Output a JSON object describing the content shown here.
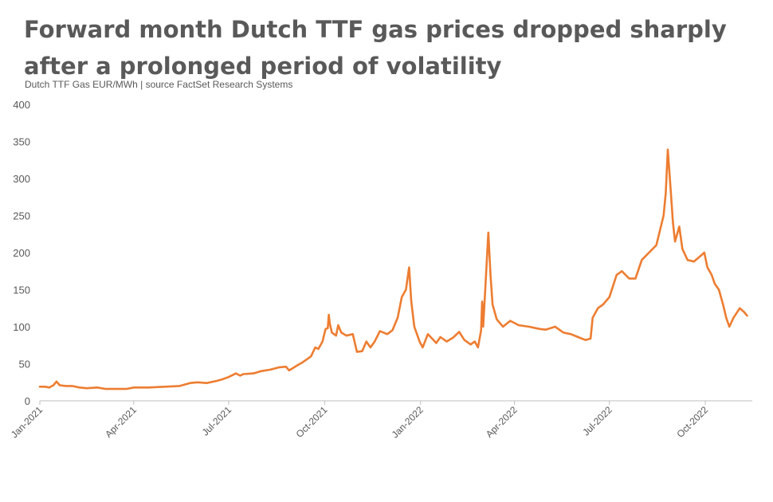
{
  "chart_data": {
    "type": "line",
    "title": "Forward month Dutch TTF gas prices dropped sharply after a prolonged period of volatility",
    "subtitle": "Dutch TTF Gas EUR/MWh  |  source FactSet Research Systems",
    "xlabel": "",
    "ylabel": "",
    "xlim": [
      "2021-01-01",
      "2022-11-15"
    ],
    "ylim": [
      0,
      400
    ],
    "y_ticks": [
      0,
      50,
      100,
      150,
      200,
      250,
      300,
      350,
      400
    ],
    "x_ticks": [
      {
        "date": "2021-01-01",
        "label": "Jan-2021"
      },
      {
        "date": "2021-04-01",
        "label": "Apr-2021"
      },
      {
        "date": "2021-07-01",
        "label": "Jul-2021"
      },
      {
        "date": "2021-10-01",
        "label": "Oct-2021"
      },
      {
        "date": "2022-01-01",
        "label": "Jan-2022"
      },
      {
        "date": "2022-04-01",
        "label": "Apr-2022"
      },
      {
        "date": "2022-07-01",
        "label": "Jul-2022"
      },
      {
        "date": "2022-10-01",
        "label": "Oct-2022"
      }
    ],
    "grid": false,
    "legend": "none",
    "colors": {
      "line": "#ED7D31",
      "axis": "#BFBFBF",
      "text": "#595959"
    },
    "series": [
      {
        "name": "",
        "points": [
          [
            "2021-01-01",
            19
          ],
          [
            "2021-01-06",
            19
          ],
          [
            "2021-01-10",
            18
          ],
          [
            "2021-01-14",
            21
          ],
          [
            "2021-01-17",
            26
          ],
          [
            "2021-01-20",
            21
          ],
          [
            "2021-01-26",
            20
          ],
          [
            "2021-02-01",
            20
          ],
          [
            "2021-02-08",
            18
          ],
          [
            "2021-02-15",
            17
          ],
          [
            "2021-02-25",
            18
          ],
          [
            "2021-03-05",
            16
          ],
          [
            "2021-03-15",
            16
          ],
          [
            "2021-03-25",
            16
          ],
          [
            "2021-04-01",
            18
          ],
          [
            "2021-04-15",
            18
          ],
          [
            "2021-05-01",
            19
          ],
          [
            "2021-05-15",
            20
          ],
          [
            "2021-05-25",
            24
          ],
          [
            "2021-06-01",
            25
          ],
          [
            "2021-06-10",
            24
          ],
          [
            "2021-06-20",
            27
          ],
          [
            "2021-06-25",
            29
          ],
          [
            "2021-07-01",
            32
          ],
          [
            "2021-07-08",
            37
          ],
          [
            "2021-07-12",
            34
          ],
          [
            "2021-07-15",
            36
          ],
          [
            "2021-07-25",
            37
          ],
          [
            "2021-08-01",
            40
          ],
          [
            "2021-08-10",
            42
          ],
          [
            "2021-08-18",
            45
          ],
          [
            "2021-08-25",
            46
          ],
          [
            "2021-08-28",
            41
          ],
          [
            "2021-09-05",
            48
          ],
          [
            "2021-09-10",
            52
          ],
          [
            "2021-09-18",
            60
          ],
          [
            "2021-09-22",
            72
          ],
          [
            "2021-09-25",
            70
          ],
          [
            "2021-09-29",
            80
          ],
          [
            "2021-10-02",
            97
          ],
          [
            "2021-10-04",
            98
          ],
          [
            "2021-10-05",
            116
          ],
          [
            "2021-10-06",
            104
          ],
          [
            "2021-10-08",
            92
          ],
          [
            "2021-10-12",
            88
          ],
          [
            "2021-10-14",
            102
          ],
          [
            "2021-10-17",
            92
          ],
          [
            "2021-10-22",
            88
          ],
          [
            "2021-10-28",
            90
          ],
          [
            "2021-11-01",
            66
          ],
          [
            "2021-11-06",
            67
          ],
          [
            "2021-11-10",
            80
          ],
          [
            "2021-11-14",
            72
          ],
          [
            "2021-11-18",
            80
          ],
          [
            "2021-11-23",
            94
          ],
          [
            "2021-11-30",
            90
          ],
          [
            "2021-12-05",
            95
          ],
          [
            "2021-12-10",
            112
          ],
          [
            "2021-12-14",
            140
          ],
          [
            "2021-12-18",
            150
          ],
          [
            "2021-12-21",
            180
          ],
          [
            "2021-12-23",
            135
          ],
          [
            "2021-12-26",
            100
          ],
          [
            "2021-12-31",
            80
          ],
          [
            "2022-01-03",
            72
          ],
          [
            "2022-01-08",
            90
          ],
          [
            "2022-01-12",
            84
          ],
          [
            "2022-01-16",
            78
          ],
          [
            "2022-01-20",
            86
          ],
          [
            "2022-01-26",
            80
          ],
          [
            "2022-02-01",
            85
          ],
          [
            "2022-02-07",
            93
          ],
          [
            "2022-02-12",
            82
          ],
          [
            "2022-02-18",
            76
          ],
          [
            "2022-02-22",
            80
          ],
          [
            "2022-02-25",
            72
          ],
          [
            "2022-02-28",
            95
          ],
          [
            "2022-03-01",
            134
          ],
          [
            "2022-03-02",
            100
          ],
          [
            "2022-03-04",
            150
          ],
          [
            "2022-03-07",
            227
          ],
          [
            "2022-03-09",
            170
          ],
          [
            "2022-03-11",
            130
          ],
          [
            "2022-03-15",
            110
          ],
          [
            "2022-03-21",
            100
          ],
          [
            "2022-03-28",
            108
          ],
          [
            "2022-04-05",
            102
          ],
          [
            "2022-04-15",
            100
          ],
          [
            "2022-04-25",
            97
          ],
          [
            "2022-05-01",
            96
          ],
          [
            "2022-05-10",
            100
          ],
          [
            "2022-05-18",
            92
          ],
          [
            "2022-05-25",
            90
          ],
          [
            "2022-06-01",
            86
          ],
          [
            "2022-06-08",
            82
          ],
          [
            "2022-06-13",
            84
          ],
          [
            "2022-06-15",
            112
          ],
          [
            "2022-06-20",
            125
          ],
          [
            "2022-06-25",
            130
          ],
          [
            "2022-07-01",
            140
          ],
          [
            "2022-07-08",
            170
          ],
          [
            "2022-07-13",
            175
          ],
          [
            "2022-07-20",
            165
          ],
          [
            "2022-07-26",
            165
          ],
          [
            "2022-08-01",
            190
          ],
          [
            "2022-08-08",
            200
          ],
          [
            "2022-08-15",
            210
          ],
          [
            "2022-08-22",
            250
          ],
          [
            "2022-08-24",
            280
          ],
          [
            "2022-08-26",
            339
          ],
          [
            "2022-08-29",
            280
          ],
          [
            "2022-08-31",
            240
          ],
          [
            "2022-09-02",
            215
          ],
          [
            "2022-09-06",
            235
          ],
          [
            "2022-09-09",
            205
          ],
          [
            "2022-09-14",
            190
          ],
          [
            "2022-09-20",
            188
          ],
          [
            "2022-09-26",
            195
          ],
          [
            "2022-09-30",
            200
          ],
          [
            "2022-10-03",
            180
          ],
          [
            "2022-10-07",
            170
          ],
          [
            "2022-10-10",
            158
          ],
          [
            "2022-10-14",
            150
          ],
          [
            "2022-10-18",
            130
          ],
          [
            "2022-10-21",
            112
          ],
          [
            "2022-10-24",
            100
          ],
          [
            "2022-10-28",
            112
          ],
          [
            "2022-11-03",
            125
          ],
          [
            "2022-11-07",
            120
          ],
          [
            "2022-11-10",
            115
          ]
        ]
      }
    ]
  }
}
